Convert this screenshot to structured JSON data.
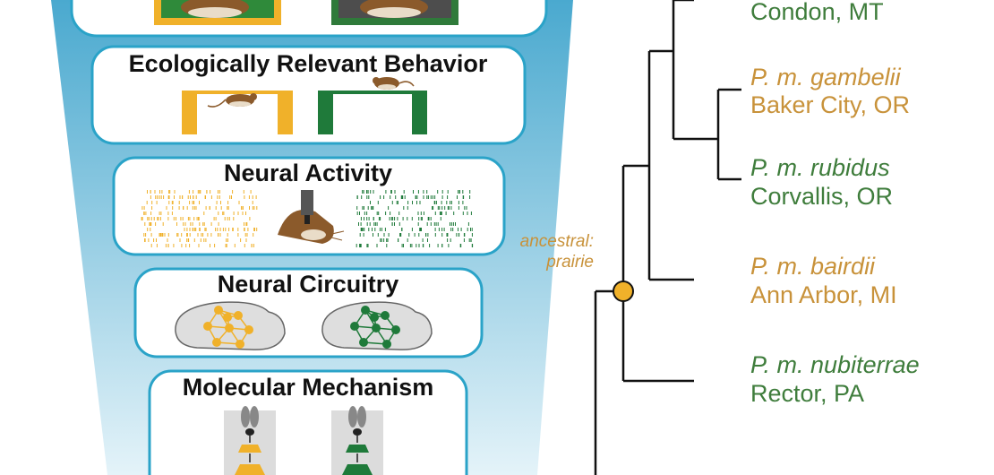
{
  "colors": {
    "prairie": "#c8923a",
    "forest": "#3f7d3c",
    "bar_prairie": "#f0b12a",
    "bar_forest": "#1f7a3a",
    "funnel": "#5fb4d4",
    "box_border": "#2aa3c8",
    "tree_line": "#111111"
  },
  "icons": {
    "mouse": "mouse-icon",
    "beam": "balance-beam-icon",
    "raster": "spike-raster-icon",
    "probe": "microscope-probe-icon",
    "brain": "brain-network-icon",
    "molecule": "molecular-pathway-icon"
  },
  "funnel": {
    "levels": [
      {
        "label": "Ecologically Relevant Behavior"
      },
      {
        "label": "Neural Activity"
      },
      {
        "label": "Neural Circuitry"
      },
      {
        "label": "Molecular Mechanism"
      }
    ]
  },
  "tree": {
    "ancestral_label_1": "ancestral:",
    "ancestral_label_2": "prairie",
    "taxa": [
      {
        "species": "",
        "location": "Condon, MT",
        "habitat": "forest"
      },
      {
        "species": "P. m. gambelii",
        "location": "Baker City, OR",
        "habitat": "prairie"
      },
      {
        "species": "P. m. rubidus",
        "location": "Corvallis, OR",
        "habitat": "forest"
      },
      {
        "species": "P. m. bairdii",
        "location": "Ann Arbor, MI",
        "habitat": "prairie"
      },
      {
        "species": "P. m. nubiterrae",
        "location": "Rector, PA",
        "habitat": "forest"
      }
    ]
  }
}
